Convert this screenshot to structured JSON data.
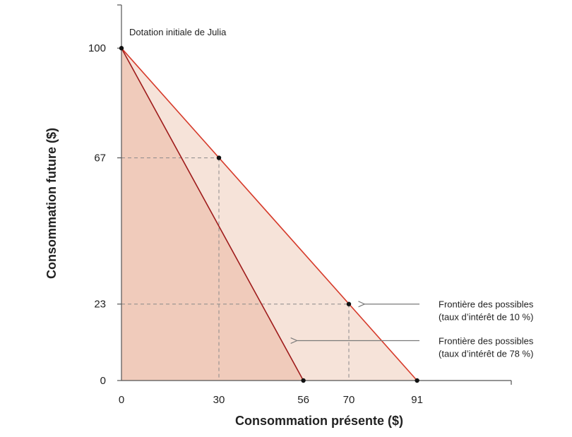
{
  "chart_data": {
    "type": "area",
    "xlabel": "Consommation présente ($)",
    "ylabel": "Consommation future ($)",
    "xlim": [
      0,
      120
    ],
    "ylim": [
      0,
      113
    ],
    "x_ticks": [
      0,
      30,
      56,
      70,
      91
    ],
    "y_ticks": [
      0,
      23,
      67,
      100
    ],
    "series": [
      {
        "name": "Frontière des possibles (taux d’intérêt de 10 %)",
        "label_lines": [
          "Frontière des possibles",
          "(taux d’intérêt de 10 %)"
        ],
        "points": [
          [
            0,
            100
          ],
          [
            91,
            0
          ]
        ],
        "line_color": "#d63a2a",
        "fill_color": "#f6e3d9"
      },
      {
        "name": "Frontière des possibles (taux d’intérêt de 78 %)",
        "label_lines": [
          "Frontière des possibles",
          "(taux d’intérêt de 78 %)"
        ],
        "points": [
          [
            0,
            100
          ],
          [
            56,
            0
          ]
        ],
        "line_color": "#9e1b1b",
        "fill_color": "#f0cbbb"
      }
    ],
    "points": [
      {
        "x": 0,
        "y": 100,
        "label": "Dotation initiale de Julia"
      },
      {
        "x": 30,
        "y": 67
      },
      {
        "x": 70,
        "y": 23
      },
      {
        "x": 56,
        "y": 0
      },
      {
        "x": 91,
        "y": 0
      }
    ],
    "guides": [
      {
        "x": 30,
        "y": 67
      },
      {
        "x": 70,
        "y": 23
      }
    ],
    "annotations": [
      {
        "series": 0,
        "at_y": 23
      },
      {
        "series": 1,
        "at_y": 12
      }
    ]
  }
}
